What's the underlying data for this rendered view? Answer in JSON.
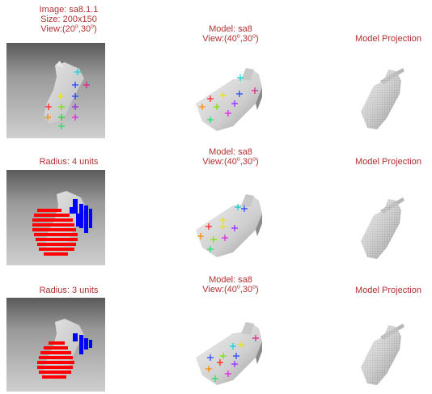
{
  "row1": {
    "col1": {
      "line1": "Image: sa8.1.1",
      "line2": "Size: 200x150",
      "view_prefix": "View:(20",
      "view_mid": ",30",
      "view_suffix": ")"
    },
    "col2": {
      "line1": "Model: sa8",
      "view_prefix": "View:(40",
      "view_mid": ",30",
      "view_suffix": ")"
    },
    "col3": {
      "line1": "Model Projection"
    }
  },
  "row2": {
    "col1": {
      "line1": "Radius: 4 units"
    },
    "col2": {
      "line1": "Model: sa8",
      "view_prefix": "View:(40",
      "view_mid": ",30",
      "view_suffix": ")"
    },
    "col3": {
      "line1": "Model Projection"
    }
  },
  "row3": {
    "col1": {
      "line1": "Radius: 3 units"
    },
    "col2": {
      "line1": "Model: sa8",
      "view_prefix": "View:(40",
      "view_mid": ",30",
      "view_suffix": ")"
    },
    "col3": {
      "line1": "Model Projection"
    }
  },
  "degree_symbol": "o",
  "colors": {
    "caption": "#b03030",
    "red_region": "#ff0000",
    "blue_region": "#0000ff"
  }
}
